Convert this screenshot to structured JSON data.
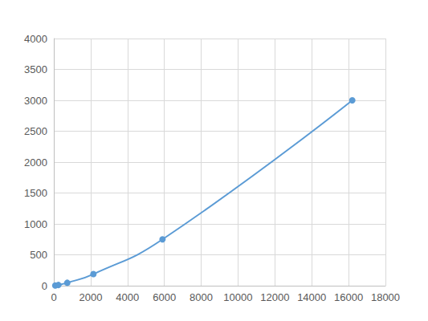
{
  "chart_data": {
    "type": "line",
    "x": [
      80,
      250,
      730,
      2150,
      5900,
      16200
    ],
    "values": [
      2.9,
      11.7,
      46.9,
      187.5,
      750,
      3000
    ],
    "color": "#5b9bd5",
    "marker": "circle",
    "line_style": "solid",
    "xlim": [
      0,
      18000
    ],
    "xticks": [
      0,
      2000,
      4000,
      6000,
      8000,
      10000,
      12000,
      14000,
      16000,
      18000
    ],
    "ylim": [
      0,
      4000
    ],
    "yticks": [
      0,
      500,
      1000,
      1500,
      2000,
      2500,
      3000,
      3500,
      4000
    ],
    "grid": true
  }
}
